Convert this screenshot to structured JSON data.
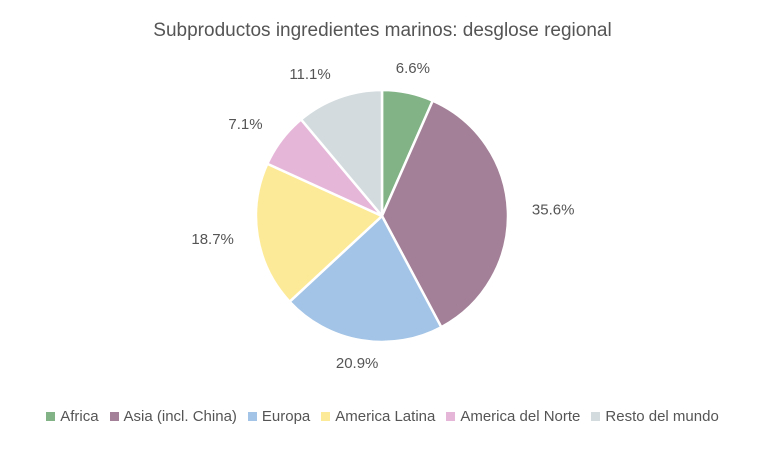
{
  "chart_data": {
    "type": "pie",
    "title": "Subproductos ingredientes marinos: desglose regional",
    "legend_position": "bottom",
    "slices": [
      {
        "name": "Africa",
        "value": 6.6,
        "label": "6.6%",
        "color": "#82b386"
      },
      {
        "name": "Asia (incl. China)",
        "value": 35.6,
        "label": "35.6%",
        "color": "#a38097"
      },
      {
        "name": "Europa",
        "value": 20.9,
        "label": "20.9%",
        "color": "#a3c4e6"
      },
      {
        "name": "America Latina",
        "value": 18.7,
        "label": "18.7%",
        "color": "#fdea98"
      },
      {
        "name": "America del Norte",
        "value": 7.1,
        "label": "7.1%",
        "color": "#e6b6d9"
      },
      {
        "name": "Resto del mundo",
        "value": 11.1,
        "label": "11.1%",
        "color": "#d3dbde"
      }
    ]
  }
}
